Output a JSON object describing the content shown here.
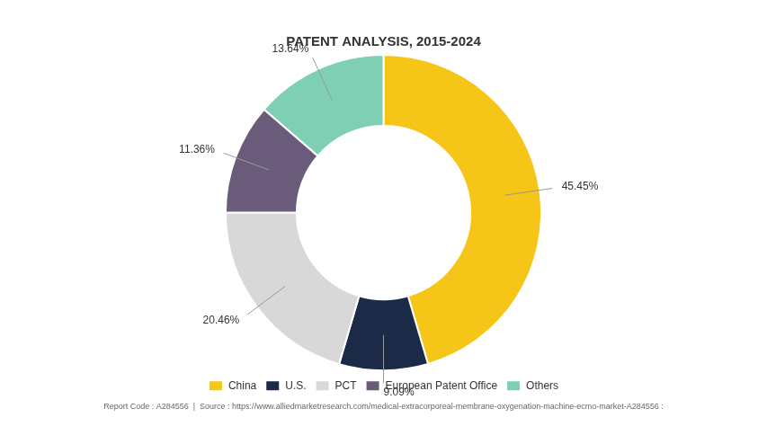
{
  "chart_data": {
    "type": "doughnut",
    "title": "PATENT ANALYSIS, 2015-2024",
    "categories": [
      "China",
      "U.S.",
      "PCT",
      "European Patent Office",
      "Others"
    ],
    "values": [
      45.45,
      9.09,
      20.46,
      11.36,
      13.64
    ],
    "value_labels": [
      "45.45%",
      "9.09%",
      "20.46%",
      "11.36%",
      "13.64%"
    ],
    "data_labels": true,
    "colors": [
      "#F5C518",
      "#1B2A47",
      "#D8D8D8",
      "#6B5B7B",
      "#7ECFB3"
    ],
    "legend": "bottom",
    "annotations": [
      "Report Code : A284556  |  Source : https://www.alliedmarketresearch.com/medical-extracorporeal-membrane-oxygenation-machine-ecmo-market-A284556 :"
    ]
  }
}
